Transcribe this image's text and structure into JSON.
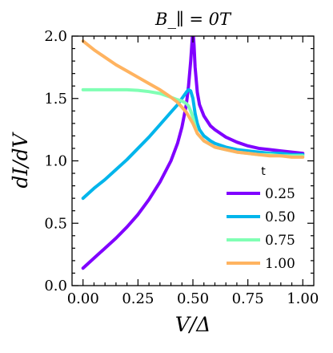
{
  "chart_data": {
    "type": "line",
    "title": "B_∥ = 0T",
    "xlabel": "V/Δ",
    "ylabel": "dI/dV",
    "xlim": [
      -0.05,
      1.05
    ],
    "ylim": [
      0.0,
      2.0
    ],
    "xticks": [
      "0.00",
      "0.25",
      "0.50",
      "0.75",
      "1.00"
    ],
    "xtick_values": [
      0.0,
      0.25,
      0.5,
      0.75,
      1.0
    ],
    "yticks": [
      "0.0",
      "0.5",
      "1.0",
      "1.5",
      "2.0"
    ],
    "ytick_values": [
      0.0,
      0.5,
      1.0,
      1.5,
      2.0
    ],
    "legend": {
      "title": "t",
      "placement": "lower-right"
    },
    "grid": false,
    "series": [
      {
        "name": "0.25",
        "color": "#8000ff",
        "x": [
          0.0,
          0.05,
          0.1,
          0.15,
          0.2,
          0.25,
          0.3,
          0.35,
          0.4,
          0.43,
          0.45,
          0.47,
          0.48,
          0.49,
          0.495,
          0.5,
          0.505,
          0.51,
          0.52,
          0.53,
          0.55,
          0.58,
          0.6,
          0.65,
          0.7,
          0.75,
          0.8,
          0.85,
          0.9,
          0.95,
          1.0
        ],
        "y": [
          0.14,
          0.22,
          0.3,
          0.38,
          0.47,
          0.57,
          0.69,
          0.83,
          1.0,
          1.14,
          1.27,
          1.45,
          1.6,
          1.8,
          1.93,
          2.05,
          1.93,
          1.75,
          1.55,
          1.45,
          1.36,
          1.28,
          1.25,
          1.19,
          1.15,
          1.12,
          1.1,
          1.09,
          1.08,
          1.07,
          1.06
        ]
      },
      {
        "name": "0.50",
        "color": "#00b5eb",
        "x": [
          0.0,
          0.05,
          0.1,
          0.15,
          0.2,
          0.25,
          0.3,
          0.35,
          0.4,
          0.43,
          0.45,
          0.47,
          0.48,
          0.49,
          0.5,
          0.51,
          0.52,
          0.53,
          0.55,
          0.58,
          0.6,
          0.65,
          0.7,
          0.75,
          0.8,
          0.85,
          0.9,
          0.95,
          1.0
        ],
        "y": [
          0.7,
          0.78,
          0.85,
          0.93,
          1.01,
          1.1,
          1.19,
          1.29,
          1.39,
          1.45,
          1.5,
          1.55,
          1.57,
          1.56,
          1.5,
          1.38,
          1.3,
          1.25,
          1.2,
          1.16,
          1.14,
          1.11,
          1.09,
          1.08,
          1.07,
          1.06,
          1.06,
          1.05,
          1.05
        ]
      },
      {
        "name": "0.75",
        "color": "#80ffb4",
        "x": [
          0.0,
          0.05,
          0.1,
          0.15,
          0.2,
          0.25,
          0.3,
          0.35,
          0.4,
          0.43,
          0.45,
          0.47,
          0.48,
          0.49,
          0.5,
          0.51,
          0.52,
          0.53,
          0.55,
          0.58,
          0.6,
          0.65,
          0.7,
          0.75,
          0.8,
          0.85,
          0.9,
          0.95,
          1.0
        ],
        "y": [
          1.57,
          1.57,
          1.57,
          1.57,
          1.57,
          1.565,
          1.555,
          1.54,
          1.51,
          1.49,
          1.48,
          1.46,
          1.44,
          1.4,
          1.35,
          1.28,
          1.22,
          1.2,
          1.16,
          1.13,
          1.11,
          1.09,
          1.07,
          1.06,
          1.05,
          1.05,
          1.04,
          1.04,
          1.04
        ]
      },
      {
        "name": "1.00",
        "color": "#ffb360",
        "x": [
          0.0,
          0.05,
          0.1,
          0.15,
          0.2,
          0.25,
          0.3,
          0.35,
          0.4,
          0.43,
          0.45,
          0.47,
          0.48,
          0.49,
          0.5,
          0.51,
          0.52,
          0.53,
          0.55,
          0.58,
          0.6,
          0.65,
          0.7,
          0.75,
          0.8,
          0.85,
          0.9,
          0.95,
          1.0
        ],
        "y": [
          1.96,
          1.89,
          1.83,
          1.77,
          1.72,
          1.67,
          1.62,
          1.57,
          1.51,
          1.47,
          1.43,
          1.39,
          1.36,
          1.33,
          1.3,
          1.26,
          1.22,
          1.2,
          1.16,
          1.13,
          1.11,
          1.09,
          1.07,
          1.06,
          1.05,
          1.04,
          1.04,
          1.03,
          1.03
        ]
      }
    ]
  }
}
